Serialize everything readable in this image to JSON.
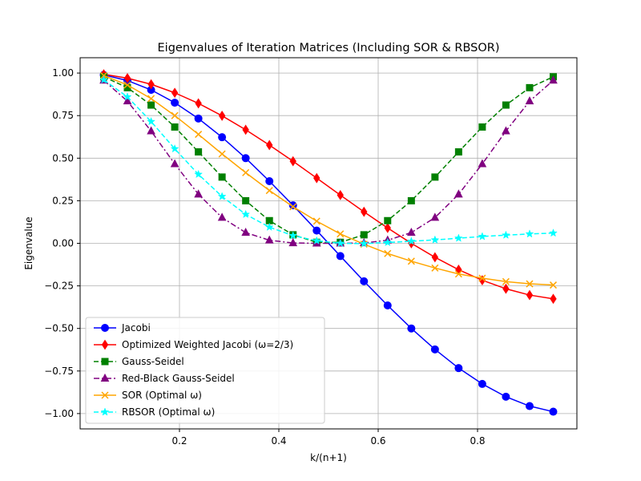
{
  "chart_data": {
    "type": "line",
    "title": "Eigenvalues of Iteration Matrices (Including SOR & RBSOR)",
    "xlabel": "k/(n+1)",
    "ylabel": "Eigenvalue",
    "xlim": [
      0.0,
      1.0
    ],
    "ylim": [
      -1.09,
      1.09
    ],
    "x_ticks": [
      0.2,
      0.4,
      0.6,
      0.8
    ],
    "x_tick_labels": [
      "0.2",
      "0.4",
      "0.6",
      "0.8"
    ],
    "y_ticks": [
      1.0,
      0.75,
      0.5,
      0.25,
      0.0,
      -0.25,
      -0.5,
      -0.75,
      -1.0
    ],
    "y_tick_labels": [
      "1.00",
      "0.75",
      "0.50",
      "0.25",
      "0.00",
      "−0.25",
      "−0.50",
      "−0.75",
      "−1.00"
    ],
    "grid": true,
    "legend_position": "lower-left",
    "x": [
      0.0476,
      0.0952,
      0.1429,
      0.1905,
      0.2381,
      0.2857,
      0.3333,
      0.381,
      0.4286,
      0.4762,
      0.5238,
      0.5714,
      0.619,
      0.6667,
      0.7143,
      0.7619,
      0.8095,
      0.8571,
      0.9048,
      0.9524
    ],
    "series": [
      {
        "name": "Jacobi",
        "color": "#0000ff",
        "dash": "solid",
        "marker": "circle",
        "values": [
          0.989,
          0.956,
          0.901,
          0.826,
          0.733,
          0.623,
          0.5,
          0.365,
          0.223,
          0.075,
          -0.075,
          -0.223,
          -0.365,
          -0.5,
          -0.623,
          -0.733,
          -0.826,
          -0.901,
          -0.956,
          -0.989
        ]
      },
      {
        "name": "Optimized Weighted Jacobi (ω=2/3)",
        "color": "#ff0000",
        "dash": "solid",
        "marker": "diamond",
        "values": [
          0.993,
          0.97,
          0.934,
          0.884,
          0.822,
          0.749,
          0.667,
          0.577,
          0.482,
          0.383,
          0.283,
          0.185,
          0.09,
          0.0,
          -0.082,
          -0.155,
          -0.217,
          -0.267,
          -0.304,
          -0.326
        ]
      },
      {
        "name": "Gauss-Seidel",
        "color": "#008000",
        "dash": "dashed",
        "marker": "square",
        "values": [
          0.978,
          0.914,
          0.812,
          0.683,
          0.537,
          0.389,
          0.25,
          0.133,
          0.05,
          0.006,
          0.006,
          0.05,
          0.133,
          0.25,
          0.389,
          0.537,
          0.683,
          0.812,
          0.914,
          0.978
        ]
      },
      {
        "name": "Red-Black Gauss-Seidel",
        "color": "#800080",
        "dash": "dashdot",
        "marker": "triangle",
        "values": [
          0.957,
          0.835,
          0.659,
          0.466,
          0.288,
          0.151,
          0.063,
          0.018,
          0.002,
          0.0,
          0.0,
          0.002,
          0.018,
          0.063,
          0.151,
          0.288,
          0.466,
          0.659,
          0.835,
          0.957
        ]
      },
      {
        "name": "SOR (Optimal ω)",
        "color": "#ffa500",
        "dash": "solid",
        "marker": "x",
        "values": [
          0.985,
          0.93,
          0.85,
          0.75,
          0.64,
          0.525,
          0.415,
          0.31,
          0.215,
          0.13,
          0.055,
          -0.005,
          -0.06,
          -0.105,
          -0.145,
          -0.18,
          -0.205,
          -0.225,
          -0.238,
          -0.245
        ]
      },
      {
        "name": "RBSOR (Optimal ω)",
        "color": "#00ffff",
        "dash": "dashed",
        "marker": "star",
        "values": [
          0.96,
          0.86,
          0.715,
          0.555,
          0.405,
          0.275,
          0.17,
          0.095,
          0.045,
          0.015,
          0.0,
          -0.002,
          0.005,
          0.012,
          0.02,
          0.03,
          0.04,
          0.048,
          0.055,
          0.06
        ]
      }
    ]
  }
}
